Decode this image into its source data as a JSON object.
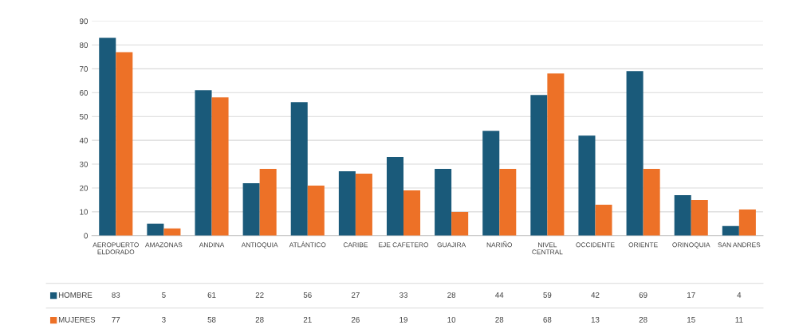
{
  "chart_data": {
    "type": "bar",
    "categories": [
      "AEROPUERTO ELDORADO",
      "AMAZONAS",
      "ANDINA",
      "ANTIOQUIA",
      "ATLÁNTICO",
      "CARIBE",
      "EJE CAFETERO",
      "GUAJIRA",
      "NARIÑO",
      "NIVEL CENTRAL",
      "OCCIDENTE",
      "ORIENTE",
      "ORINOQUIA",
      "SAN ANDRES"
    ],
    "series": [
      {
        "name": "HOMBRE",
        "color": "#1a5a7a",
        "values": [
          83,
          5,
          61,
          22,
          56,
          27,
          33,
          28,
          44,
          59,
          42,
          69,
          17,
          4
        ]
      },
      {
        "name": "MUJERES",
        "color": "#ed7127",
        "values": [
          77,
          3,
          58,
          28,
          21,
          26,
          19,
          10,
          28,
          68,
          13,
          28,
          15,
          11
        ]
      }
    ],
    "ylim": [
      0,
      90
    ],
    "yticks": [
      0,
      10,
      20,
      30,
      40,
      50,
      60,
      70,
      80,
      90
    ],
    "grid": "y",
    "legend": "bottom",
    "data_labels": true
  }
}
